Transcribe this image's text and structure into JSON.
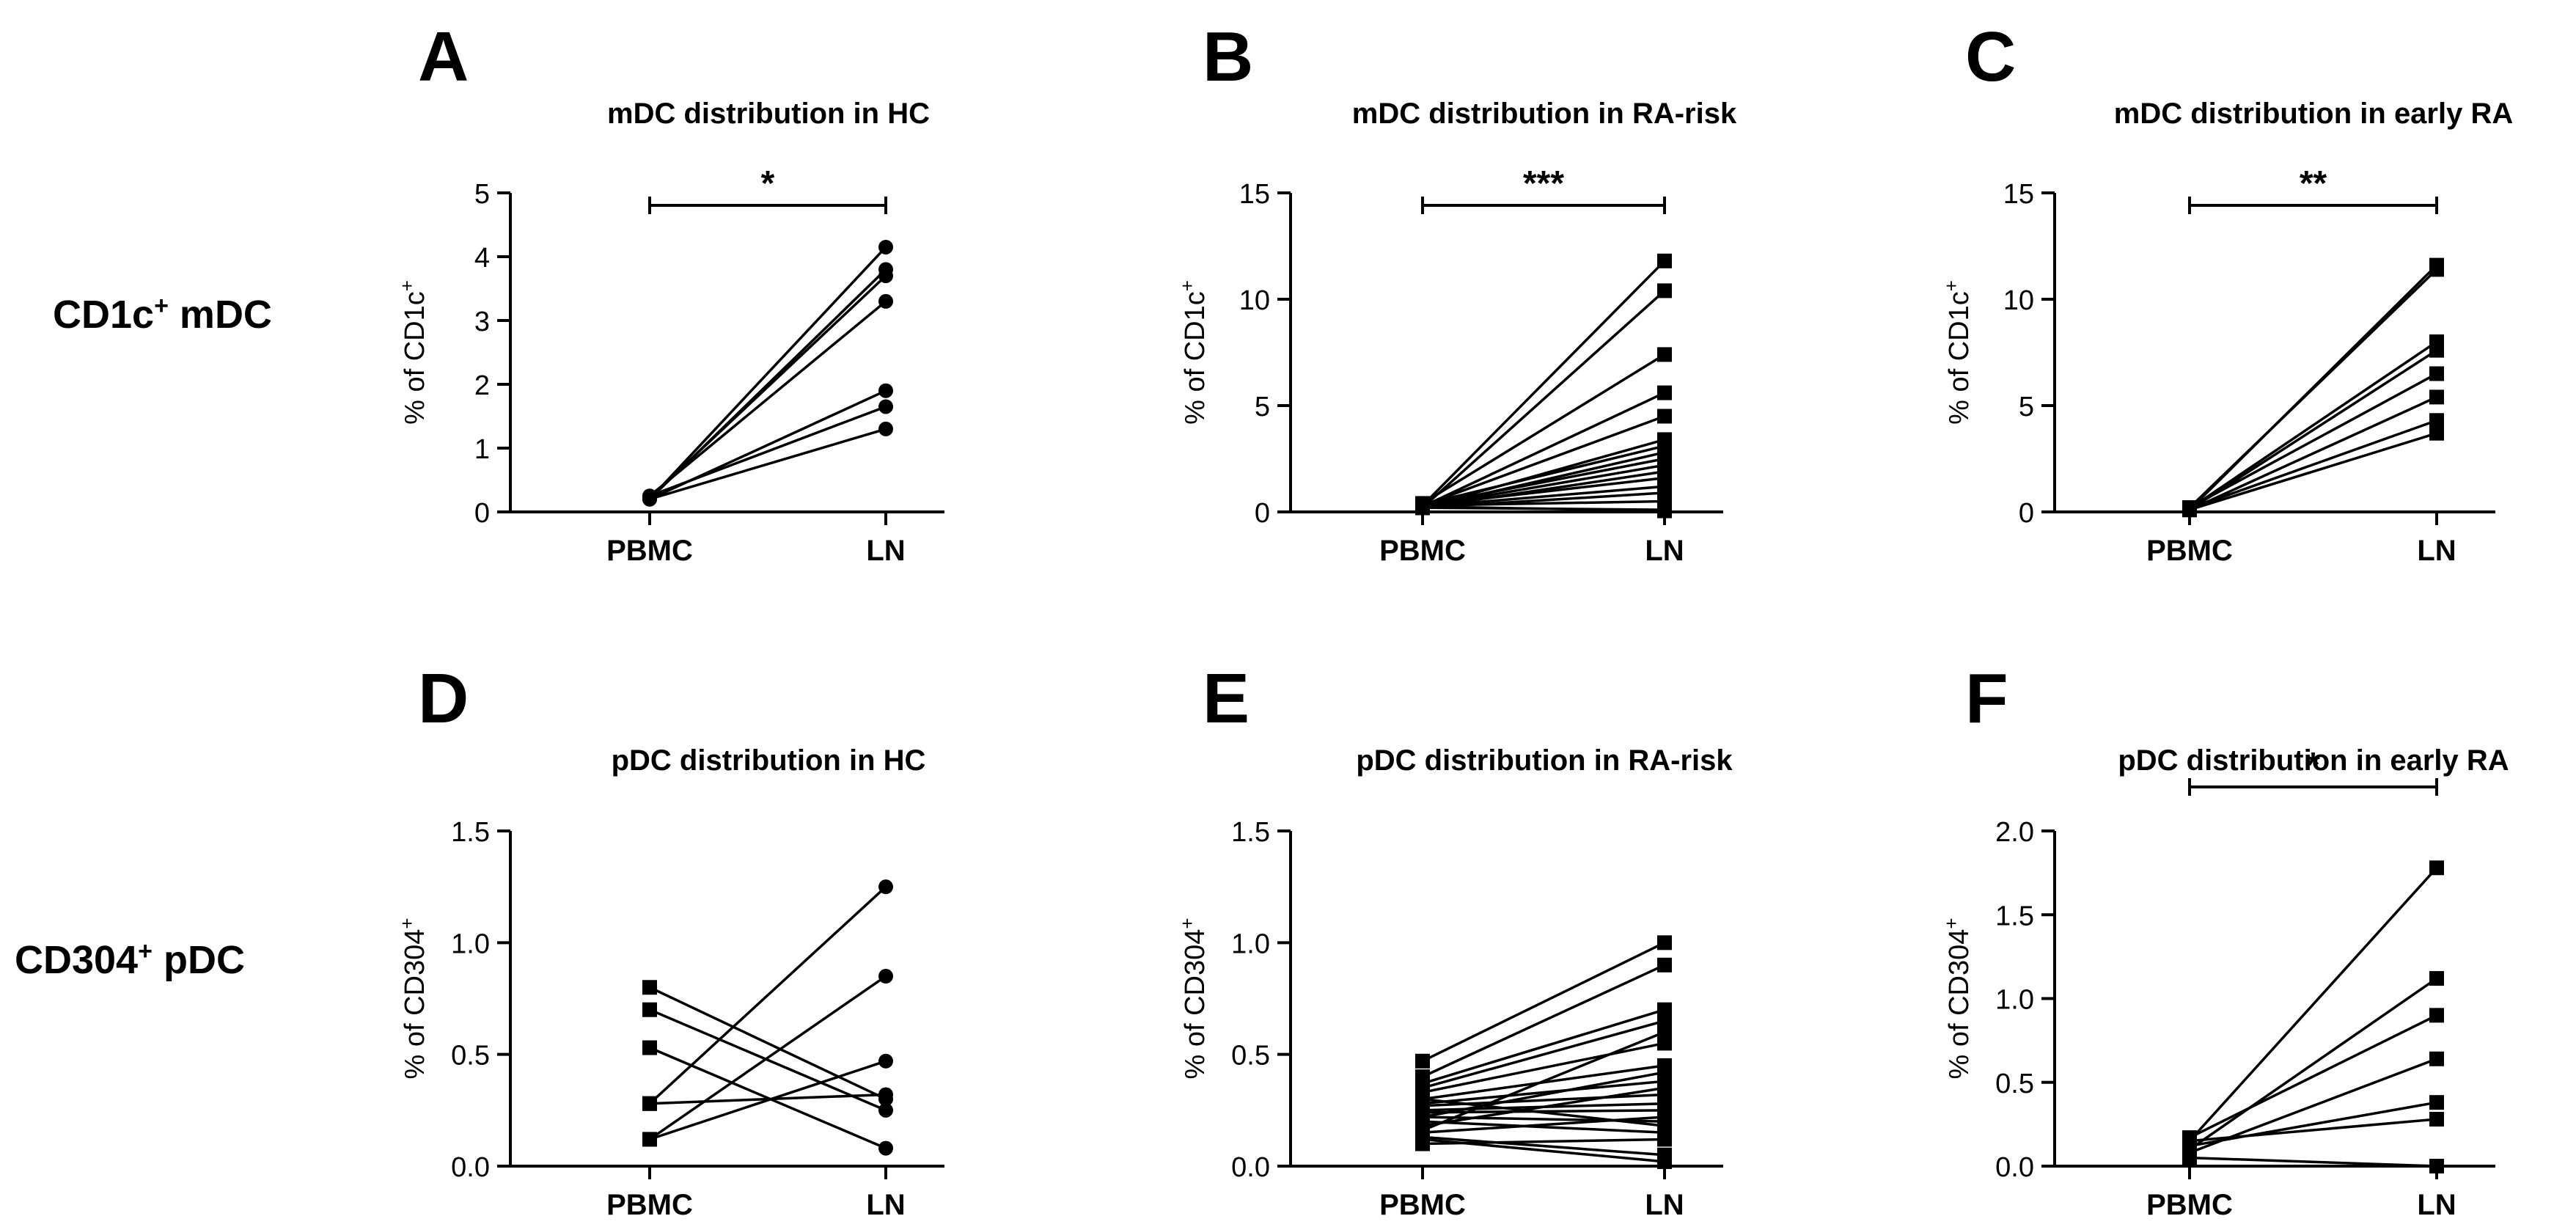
{
  "row_labels": {
    "row1": {
      "main": "CD1c",
      "sup": "+",
      "rest": " mDC"
    },
    "row2": {
      "main": "CD304",
      "sup": "+",
      "rest": " pDC"
    }
  },
  "chart_data": [
    {
      "panel": "A",
      "type": "line",
      "title": "mDC distribution in HC",
      "ylabel": "% of CD1c+",
      "categories": [
        "PBMC",
        "LN"
      ],
      "ylim": [
        0,
        5
      ],
      "yticks": [
        0,
        1,
        2,
        3,
        4,
        5
      ],
      "marker": "circle",
      "significance": "*",
      "pairs": [
        [
          0.2,
          4.15
        ],
        [
          0.2,
          3.8
        ],
        [
          0.22,
          3.7
        ],
        [
          0.25,
          3.3
        ],
        [
          0.2,
          1.9
        ],
        [
          0.25,
          1.65
        ],
        [
          0.2,
          1.3
        ]
      ]
    },
    {
      "panel": "B",
      "type": "line",
      "title": "mDC distribution in RA-risk",
      "ylabel": "% of CD1c+",
      "categories": [
        "PBMC",
        "LN"
      ],
      "ylim": [
        0,
        15
      ],
      "yticks": [
        0,
        5,
        10,
        15
      ],
      "marker": "square",
      "significance": "***",
      "pairs": [
        [
          0.3,
          11.8
        ],
        [
          0.2,
          10.4
        ],
        [
          0.4,
          7.4
        ],
        [
          0.25,
          5.6
        ],
        [
          0.3,
          4.5
        ],
        [
          0.2,
          3.4
        ],
        [
          0.35,
          3.1
        ],
        [
          0.2,
          2.8
        ],
        [
          0.3,
          2.5
        ],
        [
          0.25,
          2.2
        ],
        [
          0.2,
          1.9
        ],
        [
          0.3,
          1.6
        ],
        [
          0.25,
          1.2
        ],
        [
          0.2,
          0.9
        ],
        [
          0.3,
          0.5
        ],
        [
          0.2,
          0.1
        ],
        [
          0.25,
          0.05
        ]
      ]
    },
    {
      "panel": "C",
      "type": "line",
      "title": "mDC distribution in early RA",
      "ylabel": "% of CD1c+",
      "categories": [
        "PBMC",
        "LN"
      ],
      "ylim": [
        0,
        15
      ],
      "yticks": [
        0,
        5,
        10,
        15
      ],
      "marker": "square",
      "significance": "**",
      "pairs": [
        [
          0.1,
          11.6
        ],
        [
          0.2,
          11.4
        ],
        [
          0.15,
          8.0
        ],
        [
          0.1,
          7.6
        ],
        [
          0.2,
          6.5
        ],
        [
          0.1,
          5.4
        ],
        [
          0.15,
          4.3
        ],
        [
          0.1,
          3.7
        ]
      ]
    },
    {
      "panel": "D",
      "type": "line",
      "title": "pDC distribution in HC",
      "ylabel": "% of CD304+",
      "categories": [
        "PBMC",
        "LN"
      ],
      "ylim": [
        0,
        1.5
      ],
      "yticks": [
        0.0,
        0.5,
        1.0,
        1.5
      ],
      "marker": "square-to-circle",
      "significance": "",
      "pairs": [
        [
          0.8,
          0.3
        ],
        [
          0.7,
          0.25
        ],
        [
          0.53,
          0.08
        ],
        [
          0.28,
          1.25
        ],
        [
          0.28,
          0.32
        ],
        [
          0.12,
          0.85
        ],
        [
          0.12,
          0.47
        ]
      ]
    },
    {
      "panel": "E",
      "type": "line",
      "title": "pDC distribution in RA-risk",
      "ylabel": "% of CD304+",
      "categories": [
        "PBMC",
        "LN"
      ],
      "ylim": [
        0,
        1.5
      ],
      "yticks": [
        0.0,
        0.5,
        1.0,
        1.5
      ],
      "marker": "square",
      "significance": "",
      "pairs": [
        [
          0.47,
          1.0
        ],
        [
          0.4,
          0.9
        ],
        [
          0.37,
          0.7
        ],
        [
          0.35,
          0.65
        ],
        [
          0.33,
          0.55
        ],
        [
          0.3,
          0.45
        ],
        [
          0.28,
          0.38
        ],
        [
          0.27,
          0.32
        ],
        [
          0.25,
          0.28
        ],
        [
          0.24,
          0.25
        ],
        [
          0.22,
          0.2
        ],
        [
          0.2,
          0.15
        ],
        [
          0.18,
          0.35
        ],
        [
          0.16,
          0.6
        ],
        [
          0.15,
          0.22
        ],
        [
          0.13,
          0.05
        ],
        [
          0.12,
          0.02
        ],
        [
          0.1,
          0.12
        ],
        [
          0.3,
          0.18
        ],
        [
          0.22,
          0.42
        ]
      ]
    },
    {
      "panel": "F",
      "type": "line",
      "title": "pDC distribution in early RA",
      "ylabel": "% of CD304+",
      "categories": [
        "PBMC",
        "LN"
      ],
      "ylim": [
        0,
        2.0
      ],
      "yticks": [
        0.0,
        0.5,
        1.0,
        1.5,
        2.0
      ],
      "marker": "square",
      "significance": "*",
      "pairs": [
        [
          0.15,
          1.78
        ],
        [
          0.1,
          1.12
        ],
        [
          0.17,
          0.9
        ],
        [
          0.08,
          0.64
        ],
        [
          0.12,
          0.38
        ],
        [
          0.15,
          0.28
        ],
        [
          0.05,
          0.0
        ]
      ]
    }
  ]
}
